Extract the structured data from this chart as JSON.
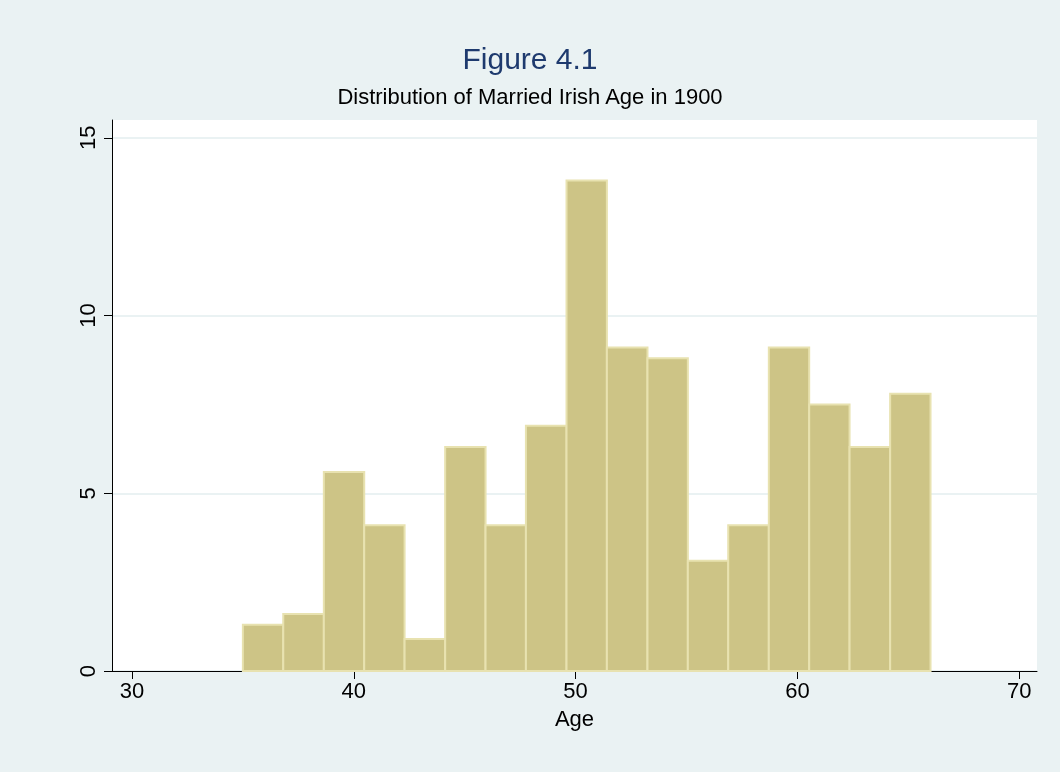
{
  "chart_data": {
    "type": "histogram",
    "title": "Figure 4.1",
    "subtitle": "Distribution of Married Irish Age in 1900",
    "xlabel": "Age",
    "bins": [
      35,
      36.82,
      38.65,
      40.47,
      42.29,
      44.12,
      45.94,
      47.76,
      49.59,
      51.41,
      53.24,
      55.06,
      56.88,
      58.71,
      60.53,
      62.35,
      64.18,
      66
    ],
    "values": [
      1.3,
      1.6,
      5.6,
      4.1,
      0.9,
      6.3,
      4.1,
      6.9,
      13.8,
      9.1,
      8.8,
      3.1,
      4.1,
      9.1,
      7.5,
      6.3,
      7.8
    ],
    "color": "#cdc486",
    "xlim": [
      29.1,
      70.8
    ],
    "xticks": [
      30,
      40,
      50,
      60,
      70
    ],
    "ylim": [
      0,
      15.5
    ],
    "yticks": [
      0,
      5,
      10,
      15
    ],
    "grid": "y"
  }
}
